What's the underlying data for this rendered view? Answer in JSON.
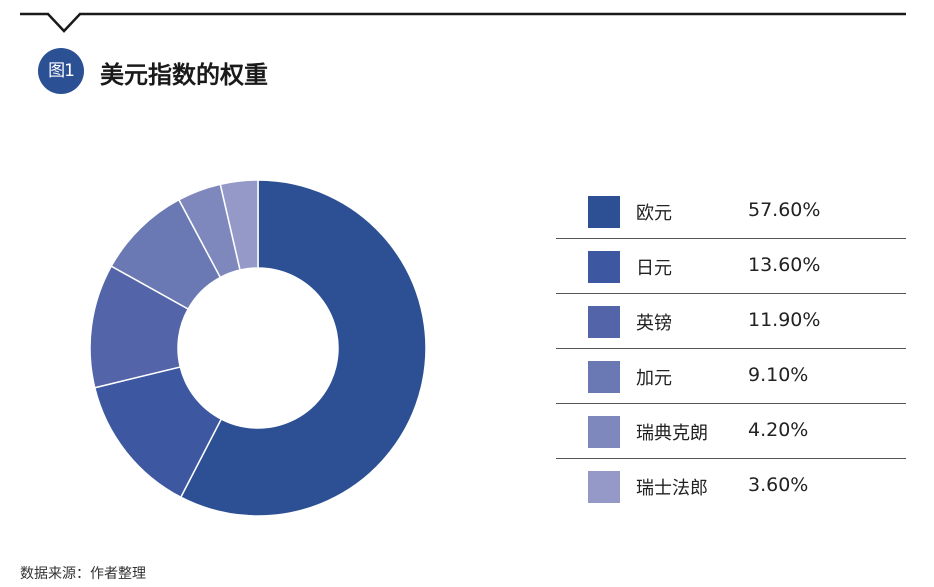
{
  "header": {
    "badge": "图1",
    "title": "美元指数的权重"
  },
  "chart_data": {
    "type": "pie",
    "donut": true,
    "title": "美元指数的权重",
    "slices": [
      {
        "label": "欧元",
        "value": 57.6,
        "display": "57.60%",
        "color": "#2c5093"
      },
      {
        "label": "日元",
        "value": 13.6,
        "display": "13.60%",
        "color": "#3d58a0"
      },
      {
        "label": "英镑",
        "value": 11.9,
        "display": "11.90%",
        "color": "#5365a8"
      },
      {
        "label": "加元",
        "value": 9.1,
        "display": "9.10%",
        "color": "#6a78b3"
      },
      {
        "label": "瑞典克朗",
        "value": 4.2,
        "display": "4.20%",
        "color": "#7f88bd"
      },
      {
        "label": "瑞士法郎",
        "value": 3.6,
        "display": "3.60%",
        "color": "#9499c8"
      }
    ],
    "legend_position": "right"
  },
  "footer": {
    "source": "数据来源：作者整理"
  }
}
